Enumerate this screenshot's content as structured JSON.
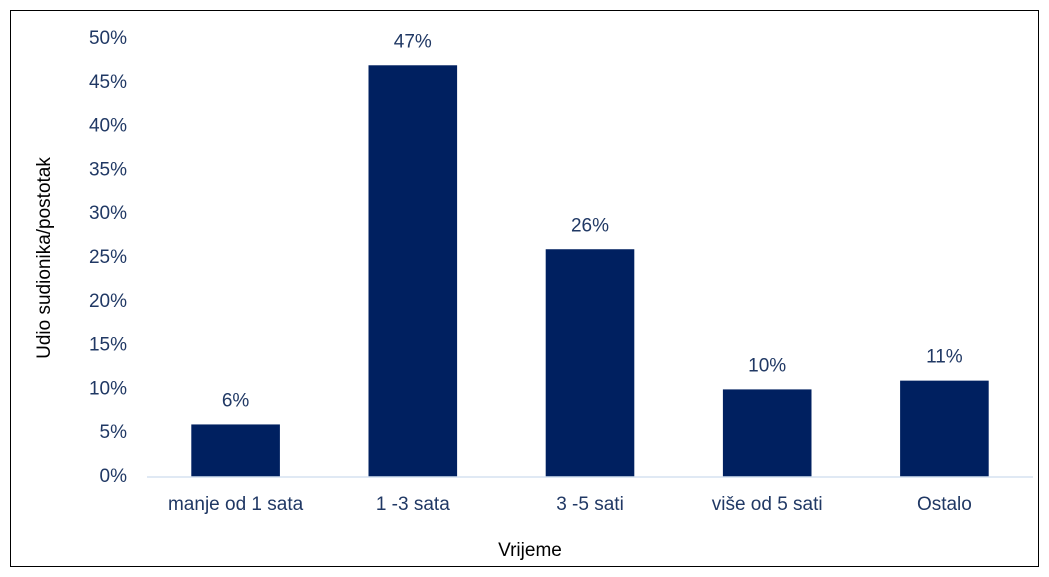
{
  "chart_data": {
    "type": "bar",
    "x_label": "Vrijeme",
    "y_label": "Udio sudionika/postotak",
    "categories": [
      "manje od 1 sata",
      "1 -3 sata",
      "3 -5 sati",
      "više od 5 sati",
      "Ostalo"
    ],
    "values": [
      6,
      47,
      26,
      10,
      11
    ],
    "value_labels": [
      "6%",
      "47%",
      "26%",
      "10%",
      "11%"
    ],
    "color": "#002060",
    "ylim": [
      0,
      50
    ],
    "yticks": [
      {
        "value": 0,
        "label": "0%"
      },
      {
        "value": 5,
        "label": "5%"
      },
      {
        "value": 10,
        "label": "10%"
      },
      {
        "value": 15,
        "label": "15%"
      },
      {
        "value": 20,
        "label": "20%"
      },
      {
        "value": 25,
        "label": "25%"
      },
      {
        "value": 30,
        "label": "30%"
      },
      {
        "value": 35,
        "label": "35%"
      },
      {
        "value": 40,
        "label": "40%"
      },
      {
        "value": 45,
        "label": "45%"
      },
      {
        "value": 50,
        "label": "50%"
      }
    ],
    "grid": false
  }
}
